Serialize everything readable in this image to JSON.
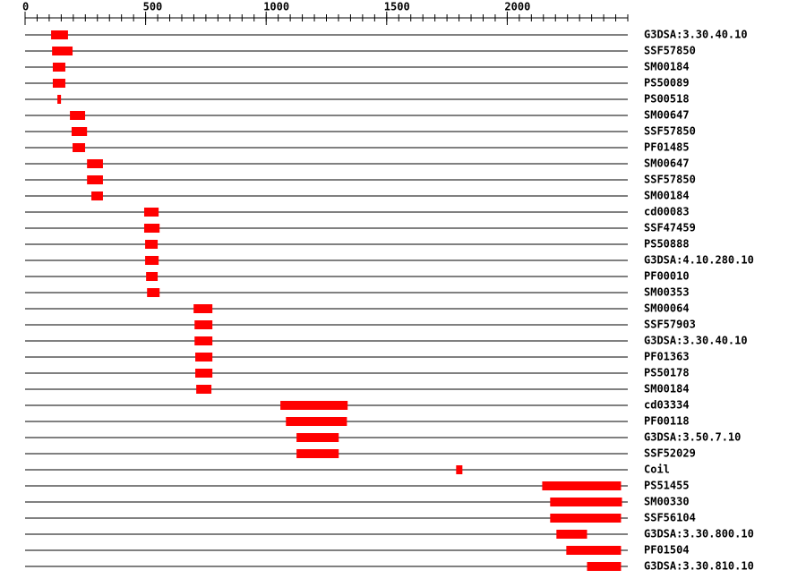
{
  "chart_data": {
    "type": "range",
    "categories": [
      "G3DSA:3.30.40.10",
      "SSF57850",
      "SM00184",
      "PS50089",
      "PS00518",
      "SM00647",
      "SSF57850",
      "PF01485",
      "SM00647",
      "SSF57850",
      "SM00184",
      "cd00083",
      "SSF47459",
      "PS50888",
      "G3DSA:4.10.280.10",
      "PF00010",
      "SM00353",
      "SM00064",
      "SSF57903",
      "G3DSA:3.30.40.10",
      "PF01363",
      "PS50178",
      "SM00184",
      "cd03334",
      "PF00118",
      "G3DSA:3.50.7.10",
      "SSF52029",
      "Coil",
      "PS51455",
      "SM00330",
      "SSF56104",
      "G3DSA:3.30.800.10",
      "PF01504",
      "G3DSA:3.30.810.10"
    ],
    "start": [
      108,
      112,
      115,
      115,
      134,
      186,
      193,
      197,
      257,
      257,
      275,
      494,
      494,
      498,
      498,
      502,
      506,
      699,
      703,
      703,
      706,
      706,
      710,
      1059,
      1082,
      1126,
      1126,
      1788,
      2145,
      2178,
      2178,
      2204,
      2245,
      2331
    ],
    "end": [
      178,
      197,
      167,
      167,
      149,
      249,
      257,
      249,
      323,
      323,
      323,
      554,
      558,
      550,
      554,
      550,
      558,
      777,
      777,
      777,
      777,
      777,
      773,
      1338,
      1335,
      1301,
      1301,
      1814,
      2472,
      2476,
      2472,
      2331,
      2472,
      2472
    ],
    "color": "#ff0000",
    "xlim": [
      0,
      2500
    ],
    "xticks": [
      0,
      500,
      1000,
      1500,
      2000
    ],
    "minor_tick_step": 50
  }
}
